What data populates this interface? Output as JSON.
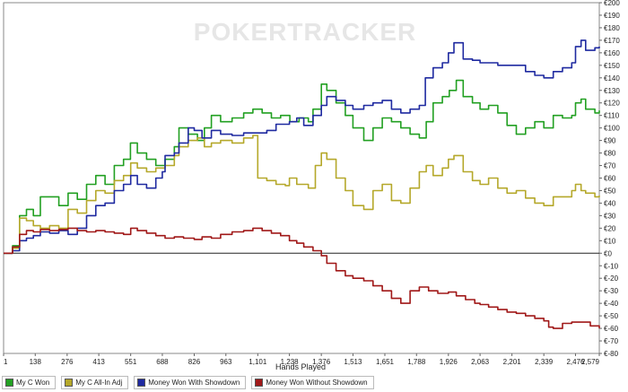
{
  "chart_data": {
    "type": "line",
    "watermark": "POKERTRACKER",
    "xlabel": "Hands Played",
    "ylabel": "",
    "xlim": [
      1,
      2579
    ],
    "ylim": [
      -80,
      200
    ],
    "xticks": [
      "1",
      "138",
      "276",
      "413",
      "551",
      "688",
      "826",
      "963",
      "1,101",
      "1,238",
      "1,376",
      "1,513",
      "1,651",
      "1,788",
      "1,926",
      "2,063",
      "2,201",
      "2,339",
      "2,476",
      "2,579"
    ],
    "xtick_values": [
      1,
      138,
      276,
      413,
      551,
      688,
      826,
      963,
      1101,
      1238,
      1376,
      1513,
      1651,
      1788,
      1926,
      2063,
      2201,
      2339,
      2476,
      2579
    ],
    "yticks": [
      "€-80",
      "€-70",
      "€-60",
      "€-50",
      "€-40",
      "€-30",
      "€-20",
      "€-10",
      "€0",
      "€10",
      "€20",
      "€30",
      "€40",
      "€50",
      "€60",
      "€70",
      "€80",
      "€90",
      "€100",
      "€110",
      "€120",
      "€130",
      "€140",
      "€150",
      "€160",
      "€170",
      "€180",
      "€190",
      "€200"
    ],
    "ytick_values": [
      -80,
      -70,
      -60,
      -50,
      -40,
      -30,
      -20,
      -10,
      0,
      10,
      20,
      30,
      40,
      50,
      60,
      70,
      80,
      90,
      100,
      110,
      120,
      130,
      140,
      150,
      160,
      170,
      180,
      190,
      200
    ],
    "grid": false,
    "legend_position": "bottom-left",
    "series": [
      {
        "name": "My C Won",
        "color": "#22a022",
        "points": [
          [
            1,
            0
          ],
          [
            40,
            6
          ],
          [
            70,
            30
          ],
          [
            100,
            35
          ],
          [
            130,
            30
          ],
          [
            160,
            45
          ],
          [
            200,
            45
          ],
          [
            240,
            38
          ],
          [
            280,
            48
          ],
          [
            320,
            43
          ],
          [
            360,
            55
          ],
          [
            400,
            62
          ],
          [
            440,
            55
          ],
          [
            480,
            70
          ],
          [
            520,
            75
          ],
          [
            550,
            88
          ],
          [
            580,
            80
          ],
          [
            620,
            75
          ],
          [
            660,
            70
          ],
          [
            700,
            75
          ],
          [
            740,
            85
          ],
          [
            760,
            100
          ],
          [
            800,
            95
          ],
          [
            840,
            90
          ],
          [
            870,
            100
          ],
          [
            900,
            110
          ],
          [
            940,
            105
          ],
          [
            990,
            108
          ],
          [
            1040,
            112
          ],
          [
            1080,
            115
          ],
          [
            1120,
            112
          ],
          [
            1160,
            108
          ],
          [
            1200,
            110
          ],
          [
            1240,
            105
          ],
          [
            1280,
            108
          ],
          [
            1320,
            105
          ],
          [
            1340,
            115
          ],
          [
            1376,
            135
          ],
          [
            1400,
            130
          ],
          [
            1440,
            120
          ],
          [
            1480,
            110
          ],
          [
            1513,
            100
          ],
          [
            1560,
            90
          ],
          [
            1600,
            100
          ],
          [
            1640,
            108
          ],
          [
            1680,
            105
          ],
          [
            1720,
            100
          ],
          [
            1760,
            95
          ],
          [
            1800,
            92
          ],
          [
            1830,
            105
          ],
          [
            1860,
            120
          ],
          [
            1900,
            125
          ],
          [
            1930,
            130
          ],
          [
            1960,
            138
          ],
          [
            1990,
            125
          ],
          [
            2030,
            120
          ],
          [
            2063,
            115
          ],
          [
            2100,
            118
          ],
          [
            2140,
            112
          ],
          [
            2180,
            102
          ],
          [
            2220,
            95
          ],
          [
            2260,
            100
          ],
          [
            2300,
            105
          ],
          [
            2339,
            100
          ],
          [
            2380,
            110
          ],
          [
            2420,
            108
          ],
          [
            2460,
            110
          ],
          [
            2476,
            120
          ],
          [
            2500,
            123
          ],
          [
            2520,
            115
          ],
          [
            2560,
            112
          ],
          [
            2579,
            114
          ]
        ]
      },
      {
        "name": "My C All-In Adj",
        "color": "#b5a82a",
        "points": [
          [
            1,
            0
          ],
          [
            40,
            4
          ],
          [
            70,
            28
          ],
          [
            100,
            26
          ],
          [
            130,
            22
          ],
          [
            160,
            20
          ],
          [
            200,
            22
          ],
          [
            240,
            20
          ],
          [
            280,
            35
          ],
          [
            320,
            32
          ],
          [
            360,
            42
          ],
          [
            400,
            50
          ],
          [
            440,
            48
          ],
          [
            480,
            58
          ],
          [
            520,
            62
          ],
          [
            551,
            72
          ],
          [
            580,
            68
          ],
          [
            620,
            65
          ],
          [
            660,
            68
          ],
          [
            700,
            70
          ],
          [
            740,
            78
          ],
          [
            760,
            85
          ],
          [
            800,
            90
          ],
          [
            840,
            92
          ],
          [
            870,
            85
          ],
          [
            900,
            88
          ],
          [
            940,
            90
          ],
          [
            990,
            88
          ],
          [
            1040,
            92
          ],
          [
            1080,
            94
          ],
          [
            1101,
            60
          ],
          [
            1140,
            58
          ],
          [
            1180,
            55
          ],
          [
            1220,
            54
          ],
          [
            1238,
            60
          ],
          [
            1270,
            55
          ],
          [
            1320,
            52
          ],
          [
            1350,
            70
          ],
          [
            1376,
            80
          ],
          [
            1400,
            75
          ],
          [
            1440,
            60
          ],
          [
            1480,
            50
          ],
          [
            1513,
            38
          ],
          [
            1560,
            35
          ],
          [
            1600,
            50
          ],
          [
            1640,
            55
          ],
          [
            1680,
            42
          ],
          [
            1720,
            40
          ],
          [
            1760,
            52
          ],
          [
            1800,
            65
          ],
          [
            1830,
            70
          ],
          [
            1860,
            62
          ],
          [
            1900,
            68
          ],
          [
            1926,
            75
          ],
          [
            1950,
            78
          ],
          [
            1990,
            65
          ],
          [
            2030,
            58
          ],
          [
            2063,
            55
          ],
          [
            2100,
            60
          ],
          [
            2140,
            52
          ],
          [
            2180,
            48
          ],
          [
            2220,
            50
          ],
          [
            2260,
            44
          ],
          [
            2300,
            40
          ],
          [
            2339,
            38
          ],
          [
            2380,
            45
          ],
          [
            2420,
            45
          ],
          [
            2460,
            50
          ],
          [
            2476,
            55
          ],
          [
            2500,
            50
          ],
          [
            2520,
            48
          ],
          [
            2560,
            45
          ],
          [
            2579,
            46
          ]
        ]
      },
      {
        "name": "Money Won With Showdown",
        "color": "#1f2aa0",
        "points": [
          [
            1,
            0
          ],
          [
            40,
            2
          ],
          [
            70,
            10
          ],
          [
            100,
            12
          ],
          [
            130,
            14
          ],
          [
            160,
            17
          ],
          [
            200,
            16
          ],
          [
            240,
            18
          ],
          [
            280,
            15
          ],
          [
            320,
            20
          ],
          [
            360,
            30
          ],
          [
            400,
            38
          ],
          [
            440,
            40
          ],
          [
            480,
            50
          ],
          [
            520,
            55
          ],
          [
            551,
            62
          ],
          [
            580,
            55
          ],
          [
            620,
            52
          ],
          [
            660,
            60
          ],
          [
            688,
            65
          ],
          [
            700,
            78
          ],
          [
            740,
            80
          ],
          [
            760,
            88
          ],
          [
            800,
            100
          ],
          [
            826,
            98
          ],
          [
            860,
            92
          ],
          [
            900,
            98
          ],
          [
            940,
            95
          ],
          [
            990,
            94
          ],
          [
            1040,
            96
          ],
          [
            1101,
            96
          ],
          [
            1140,
            98
          ],
          [
            1180,
            103
          ],
          [
            1238,
            105
          ],
          [
            1270,
            108
          ],
          [
            1300,
            102
          ],
          [
            1340,
            110
          ],
          [
            1376,
            118
          ],
          [
            1400,
            125
          ],
          [
            1440,
            122
          ],
          [
            1480,
            118
          ],
          [
            1513,
            115
          ],
          [
            1560,
            118
          ],
          [
            1600,
            120
          ],
          [
            1640,
            122
          ],
          [
            1680,
            115
          ],
          [
            1720,
            112
          ],
          [
            1760,
            115
          ],
          [
            1800,
            118
          ],
          [
            1826,
            140
          ],
          [
            1860,
            148
          ],
          [
            1900,
            152
          ],
          [
            1926,
            160
          ],
          [
            1950,
            168
          ],
          [
            1990,
            155
          ],
          [
            2030,
            154
          ],
          [
            2063,
            152
          ],
          [
            2100,
            152
          ],
          [
            2140,
            150
          ],
          [
            2180,
            150
          ],
          [
            2220,
            150
          ],
          [
            2260,
            145
          ],
          [
            2300,
            142
          ],
          [
            2339,
            140
          ],
          [
            2380,
            145
          ],
          [
            2420,
            148
          ],
          [
            2460,
            152
          ],
          [
            2476,
            165
          ],
          [
            2500,
            170
          ],
          [
            2520,
            162
          ],
          [
            2560,
            164
          ],
          [
            2579,
            165
          ]
        ]
      },
      {
        "name": "Money Won Without Showdown",
        "color": "#a01818",
        "points": [
          [
            1,
            0
          ],
          [
            40,
            5
          ],
          [
            70,
            15
          ],
          [
            100,
            18
          ],
          [
            130,
            17
          ],
          [
            160,
            19
          ],
          [
            200,
            18
          ],
          [
            240,
            19
          ],
          [
            280,
            20
          ],
          [
            320,
            18
          ],
          [
            360,
            17
          ],
          [
            400,
            18
          ],
          [
            440,
            17
          ],
          [
            480,
            16
          ],
          [
            520,
            15
          ],
          [
            551,
            20
          ],
          [
            580,
            18
          ],
          [
            620,
            16
          ],
          [
            660,
            14
          ],
          [
            700,
            12
          ],
          [
            740,
            13
          ],
          [
            780,
            12
          ],
          [
            826,
            11
          ],
          [
            860,
            13
          ],
          [
            900,
            12
          ],
          [
            940,
            15
          ],
          [
            990,
            17
          ],
          [
            1040,
            18
          ],
          [
            1080,
            20
          ],
          [
            1120,
            18
          ],
          [
            1160,
            16
          ],
          [
            1200,
            14
          ],
          [
            1238,
            10
          ],
          [
            1270,
            8
          ],
          [
            1300,
            5
          ],
          [
            1340,
            2
          ],
          [
            1376,
            -2
          ],
          [
            1400,
            -8
          ],
          [
            1440,
            -14
          ],
          [
            1480,
            -18
          ],
          [
            1513,
            -20
          ],
          [
            1560,
            -22
          ],
          [
            1600,
            -26
          ],
          [
            1640,
            -30
          ],
          [
            1680,
            -36
          ],
          [
            1720,
            -40
          ],
          [
            1760,
            -30
          ],
          [
            1800,
            -27
          ],
          [
            1840,
            -30
          ],
          [
            1880,
            -32
          ],
          [
            1926,
            -31
          ],
          [
            1960,
            -34
          ],
          [
            2000,
            -37
          ],
          [
            2040,
            -40
          ],
          [
            2063,
            -41
          ],
          [
            2100,
            -43
          ],
          [
            2140,
            -45
          ],
          [
            2180,
            -47
          ],
          [
            2220,
            -48
          ],
          [
            2260,
            -50
          ],
          [
            2300,
            -52
          ],
          [
            2339,
            -54
          ],
          [
            2360,
            -59
          ],
          [
            2380,
            -60
          ],
          [
            2420,
            -56
          ],
          [
            2460,
            -55
          ],
          [
            2500,
            -55
          ],
          [
            2540,
            -58
          ],
          [
            2579,
            -60
          ]
        ]
      }
    ]
  }
}
